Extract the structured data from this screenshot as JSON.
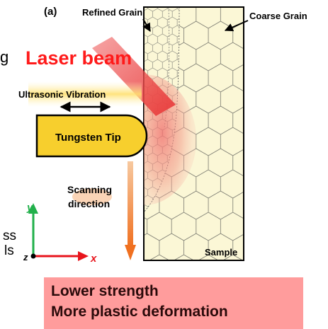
{
  "panel_label": "(a)",
  "labels": {
    "refined_grain": "Refined Grain",
    "coarse_grain": "Coarse Grain",
    "laser_beam": "Laser beam",
    "ultrasonic_vibration": "Ultrasonic Vibration",
    "tungsten_tip": "Tungsten Tip",
    "scanning_line1": "Scanning",
    "scanning_line2": "direction",
    "sample": "Sample",
    "clipped_left_1": "g",
    "clipped_left_2": "ss",
    "clipped_left_3": "ls"
  },
  "axes": {
    "y": "y",
    "x": "x",
    "z": "z"
  },
  "result": {
    "line1": "Lower strength",
    "line2": "More plastic deformation"
  },
  "colors": {
    "sample_fill": "#fbf7d6",
    "tip_fill": "#f7cf2d",
    "laser": "#ef5a5a",
    "laser_text": "#ff1a1a",
    "scan_arrow": "#f0822a",
    "axis_y": "#22b04b",
    "axis_x": "#e8141c",
    "result_box": "#ff9c9c"
  }
}
